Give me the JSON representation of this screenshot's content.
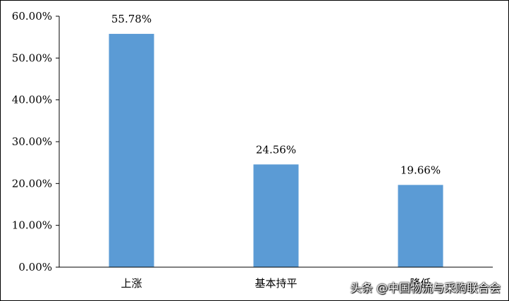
{
  "chart_data": {
    "type": "bar",
    "title": "",
    "xlabel": "",
    "ylabel": "",
    "categories": [
      "上涨",
      "基本持平",
      "降低"
    ],
    "values": [
      55.78,
      24.56,
      19.66
    ],
    "data_labels": [
      "55.78%",
      "24.56%",
      "19.66%"
    ],
    "ylim": [
      0,
      60
    ],
    "yticks": [
      0,
      10,
      20,
      30,
      40,
      50,
      60
    ],
    "ytick_labels": [
      "0.00%",
      "10.00%",
      "20.00%",
      "30.00%",
      "40.00%",
      "50.00%",
      "60.00%"
    ],
    "grid": false,
    "legend": "none",
    "bar_color": "#5b9bd5",
    "axis_color": "#000000"
  },
  "watermark": "头条 @中国物流与采购联合会"
}
